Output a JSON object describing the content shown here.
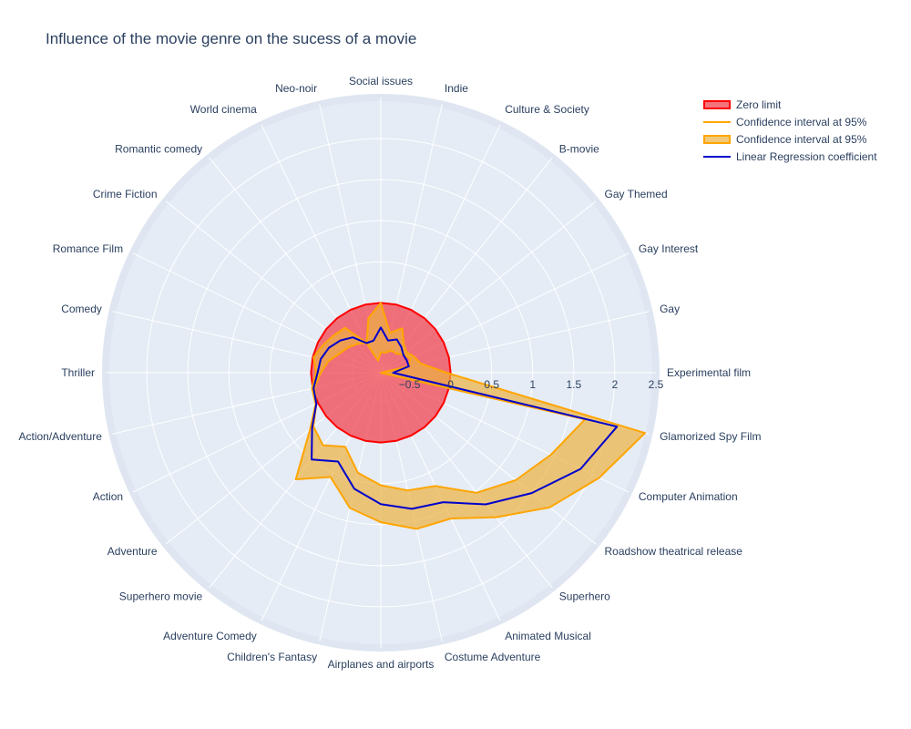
{
  "chart_data": {
    "type": "radar",
    "title": "Influence of the movie genre on the sucess of a movie",
    "categories": [
      "Social issues",
      "Indie",
      "Culture & Society",
      "B-movie",
      "Gay Themed",
      "Gay Interest",
      "Gay",
      "Experimental film",
      "Glamorized Spy Film",
      "Computer Animation",
      "Roadshow theatrical release",
      "Superhero",
      "Animated Musical",
      "Costume Adventure",
      "Airplanes and airports",
      "Children's Fantasy",
      "Adventure Comedy",
      "Superhero movie",
      "Adventure",
      "Action",
      "Action/Adventure",
      "Thriller",
      "Comedy",
      "Romance Film",
      "Crime Fiction",
      "Romantic comedy",
      "World cinema",
      "Neo-noir"
    ],
    "radial_axis": {
      "range": [
        -0.85,
        2.5
      ],
      "tickvals": [
        -0.5,
        0,
        0.5,
        1,
        1.5,
        2,
        2.5
      ],
      "ticktext": [
        "−0.5",
        "0",
        "0.5",
        "1",
        "1.5",
        "2",
        "2.5"
      ]
    },
    "series": [
      {
        "name": "Zero limit",
        "role": "zero",
        "values": [
          0,
          0,
          0,
          0,
          0,
          0,
          0,
          0,
          0,
          0,
          0,
          0,
          0,
          0,
          0,
          0,
          0,
          0,
          0,
          0,
          0,
          0,
          0,
          0,
          0,
          0,
          0,
          0
        ],
        "line_color": "#ff0000",
        "fill_color": "rgba(240,70,80,0.75)"
      },
      {
        "name": "Confidence interval at 95%",
        "role": "lower",
        "values": [
          -0.6,
          -0.6,
          -0.55,
          -0.55,
          -0.5,
          -0.45,
          -0.5,
          -0.85,
          1.7,
          1.45,
          1.25,
          1.02,
          0.68,
          0.62,
          0.52,
          0.4,
          0.15,
          0.28,
          0.2,
          0.02,
          -0.02,
          -0.12,
          -0.2,
          -0.3,
          -0.35,
          -0.4,
          -0.45,
          -0.7
        ],
        "line_color": "#ffa500"
      },
      {
        "name": "Confidence interval at 95%",
        "role": "upper",
        "values": [
          0.0,
          -0.35,
          -0.25,
          -0.4,
          -0.45,
          -0.4,
          -0.35,
          -0.05,
          2.45,
          2.1,
          1.78,
          1.4,
          1.12,
          1.1,
          0.97,
          0.84,
          0.56,
          0.81,
          0.25,
          0.03,
          0.01,
          -0.06,
          -0.01,
          -0.07,
          -0.12,
          -0.15,
          -0.45,
          -0.17
        ],
        "line_color": "#ffa500",
        "fill_color": "rgba(236,178,66,0.7)"
      },
      {
        "name": "Linear Regression coefficient",
        "role": "coef",
        "values": [
          -0.3,
          -0.45,
          -0.4,
          -0.45,
          -0.5,
          -0.5,
          -0.5,
          -0.7,
          2.1,
          1.85,
          1.5,
          1.2,
          0.9,
          0.85,
          0.75,
          0.6,
          0.35,
          0.5,
          0.22,
          0.02,
          -0.01,
          -0.08,
          -0.1,
          -0.15,
          -0.22,
          -0.3,
          -0.45,
          -0.45
        ],
        "line_color": "#0000cc"
      }
    ],
    "legend": {
      "placement": "top-right",
      "entries": [
        "Zero limit",
        "Confidence interval at 95%",
        "Confidence interval at 95%",
        "Linear Regression coefficient"
      ]
    },
    "grid": true
  },
  "colors": {
    "plot_background": "#e5ecf6",
    "grid": "#ffffff",
    "text": "#2a3f5f"
  }
}
